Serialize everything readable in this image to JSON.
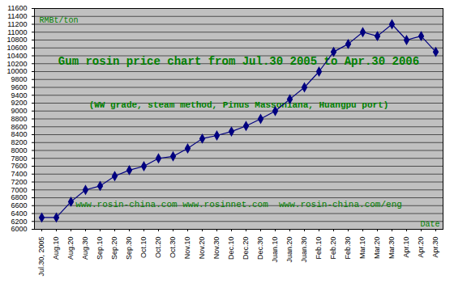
{
  "chart_data": {
    "type": "line",
    "title": "Gum rosin price chart from Jul.30 2005 to Apr.30 2006",
    "subtitle": "(WW grade, steam method, Pinus Massoniana, Huangpu port)",
    "annotations": [
      "www.rosin-china.com www.rosinnet.com  www.rosin-china.com/eng"
    ],
    "y_label": "RMBt/ton",
    "x_label": "Date",
    "categories": [
      "Jul.30, 2005",
      "Aug.10",
      "Aug.20",
      "Aug.30",
      "Sep.10",
      "Sep.20",
      "Sep.30",
      "Oct.10",
      "Oct.20",
      "Oct.30",
      "Nov.10",
      "Nov.20",
      "Nov.30",
      "Dec.10",
      "Dec.20",
      "Dec.30",
      "Juan.10",
      "Juan.20",
      "Juan.30",
      "Feb.10",
      "Feb.20",
      "Feb.30",
      "Mar.10",
      "Mar.20",
      "Mar.30",
      "Apr.10",
      "Apr.20",
      "Apr.30"
    ],
    "values": [
      6300,
      6300,
      6700,
      7000,
      7100,
      7350,
      7500,
      7600,
      7800,
      7850,
      8050,
      8300,
      8380,
      8480,
      8620,
      8800,
      9000,
      9300,
      9600,
      10000,
      10500,
      10700,
      11000,
      10900,
      11200,
      10800,
      10900,
      10500
    ],
    "color": "#000080",
    "marker": "diamond",
    "ylim": [
      6000,
      11600
    ],
    "yticks": [
      6000,
      6200,
      6400,
      6600,
      6800,
      7000,
      7200,
      7400,
      7600,
      7800,
      8000,
      8200,
      8400,
      8600,
      8800,
      9000,
      9200,
      9400,
      9600,
      9800,
      10000,
      10200,
      10400,
      10600,
      10800,
      11000,
      11200,
      11400,
      11600
    ],
    "grid": true
  }
}
